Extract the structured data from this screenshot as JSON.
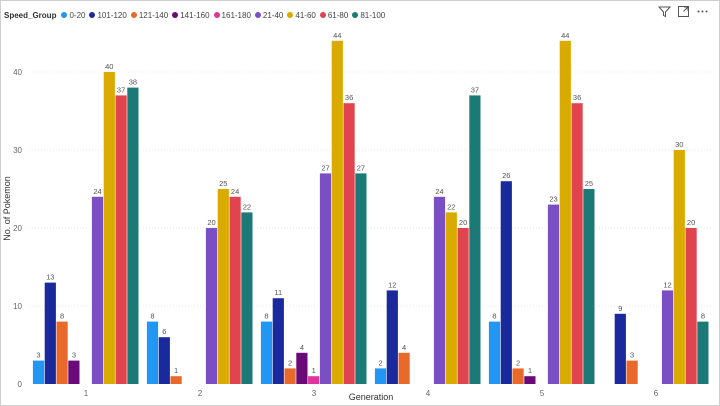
{
  "legend": {
    "title": "Speed_Group",
    "items": [
      {
        "label": "0-20",
        "color": "#2196f3"
      },
      {
        "label": "101-120",
        "color": "#1a2a9c"
      },
      {
        "label": "121-140",
        "color": "#e8692a"
      },
      {
        "label": "141-160",
        "color": "#6a0a78"
      },
      {
        "label": "161-180",
        "color": "#e0359a"
      },
      {
        "label": "21-40",
        "color": "#7b4fc4"
      },
      {
        "label": "41-60",
        "color": "#d9ab00"
      },
      {
        "label": "61-80",
        "color": "#e0454f"
      },
      {
        "label": "81-100",
        "color": "#1b7a76"
      }
    ]
  },
  "toolbar": {
    "filter_icon": "filter-icon",
    "focus_icon": "expand-icon",
    "more_icon": "more-options-icon"
  },
  "chart_data": {
    "type": "bar",
    "xlabel": "Generation",
    "ylabel": "No. of Pokemon",
    "ylim": [
      0,
      45
    ],
    "yticks": [
      0,
      10,
      20,
      30,
      40
    ],
    "grid": true,
    "legend_position": "top-left",
    "categories": [
      "1",
      "2",
      "3",
      "4",
      "5",
      "6"
    ],
    "series": [
      {
        "name": "0-20",
        "color": "#2196f3",
        "values": [
          3,
          8,
          8,
          2,
          8,
          null
        ]
      },
      {
        "name": "101-120",
        "color": "#1a2a9c",
        "values": [
          13,
          6,
          11,
          12,
          26,
          9
        ]
      },
      {
        "name": "121-140",
        "color": "#e8692a",
        "values": [
          8,
          1,
          2,
          4,
          2,
          3
        ]
      },
      {
        "name": "141-160",
        "color": "#6a0a78",
        "values": [
          3,
          null,
          4,
          null,
          1,
          null
        ]
      },
      {
        "name": "161-180",
        "color": "#e0359a",
        "values": [
          null,
          null,
          1,
          null,
          null,
          null
        ]
      },
      {
        "name": "21-40",
        "color": "#7b4fc4",
        "values": [
          24,
          20,
          27,
          24,
          23,
          12
        ]
      },
      {
        "name": "41-60",
        "color": "#d9ab00",
        "values": [
          40,
          25,
          44,
          22,
          44,
          30
        ]
      },
      {
        "name": "61-80",
        "color": "#e0454f",
        "values": [
          37,
          24,
          36,
          20,
          36,
          20
        ]
      },
      {
        "name": "81-100",
        "color": "#1b7a76",
        "values": [
          38,
          22,
          27,
          37,
          25,
          8
        ]
      }
    ]
  }
}
